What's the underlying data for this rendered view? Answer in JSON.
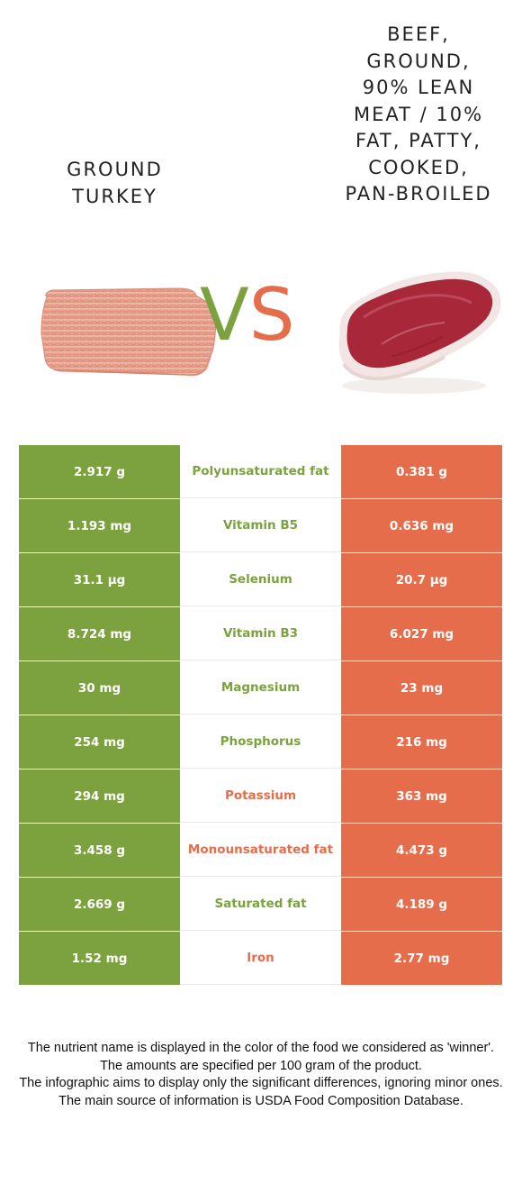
{
  "food_left": {
    "name": "GROUND\nTURKEY",
    "color": "#7ba23f"
  },
  "food_right": {
    "name": "BEEF,\nGROUND,\n90% LEAN\nMEAT / 10%\nFAT, PATTY,\nCOOKED,\nPAN-BROILED",
    "color": "#e56d4b"
  },
  "vs": {
    "v": "V",
    "s": "S"
  },
  "rows": [
    {
      "left": "2.917 g",
      "nutrient": "Polyunsaturated fat",
      "right": "0.381 g",
      "winner": "left"
    },
    {
      "left": "1.193 mg",
      "nutrient": "Vitamin B5",
      "right": "0.636 mg",
      "winner": "left"
    },
    {
      "left": "31.1 µg",
      "nutrient": "Selenium",
      "right": "20.7 µg",
      "winner": "left"
    },
    {
      "left": "8.724 mg",
      "nutrient": "Vitamin B3",
      "right": "6.027 mg",
      "winner": "left"
    },
    {
      "left": "30 mg",
      "nutrient": "Magnesium",
      "right": "23 mg",
      "winner": "left"
    },
    {
      "left": "254 mg",
      "nutrient": "Phosphorus",
      "right": "216 mg",
      "winner": "left"
    },
    {
      "left": "294 mg",
      "nutrient": "Potassium",
      "right": "363 mg",
      "winner": "right"
    },
    {
      "left": "3.458 g",
      "nutrient": "Monounsaturated fat",
      "right": "4.473 g",
      "winner": "right"
    },
    {
      "left": "2.669 g",
      "nutrient": "Saturated fat",
      "right": "4.189 g",
      "winner": "left"
    },
    {
      "left": "1.52 mg",
      "nutrient": "Iron",
      "right": "2.77 mg",
      "winner": "right"
    }
  ],
  "footnotes": [
    "The nutrient name is displayed in the color of the food we considered as 'winner'.",
    "The amounts are specified per 100 gram of the product.",
    "The infographic aims to display only the significant differences, ignoring minor ones.",
    "The main source of information is USDA Food Composition Database."
  ]
}
